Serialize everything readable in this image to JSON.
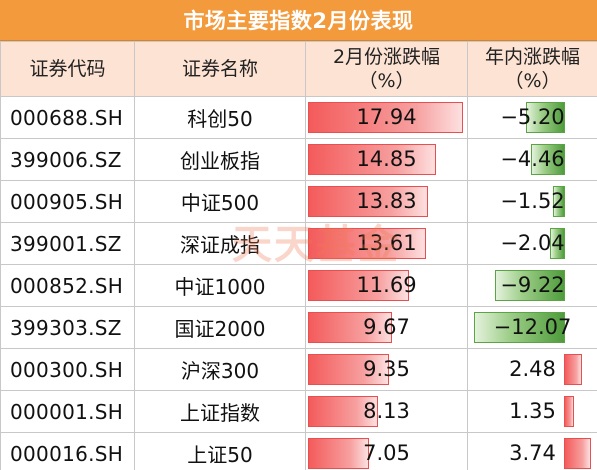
{
  "title": "市场主要指数2月份表现",
  "headers": {
    "code": "证券代码",
    "name": "证券名称",
    "feb_line1": "2月份涨跌幅",
    "feb_line2": "（%）",
    "ytd_line1": "年内涨跌幅",
    "ytd_line2": "（%）"
  },
  "rows": [
    {
      "code": "000688.SH",
      "name": "科创50",
      "feb": "17.94",
      "ytd": "−5.20",
      "feb_value": 17.94,
      "ytd_value": -5.2
    },
    {
      "code": "399006.SZ",
      "name": "创业板指",
      "feb": "14.85",
      "ytd": "−4.46",
      "feb_value": 14.85,
      "ytd_value": -4.46
    },
    {
      "code": "000905.SH",
      "name": "中证500",
      "feb": "13.83",
      "ytd": "−1.52",
      "feb_value": 13.83,
      "ytd_value": -1.52
    },
    {
      "code": "399001.SZ",
      "name": "深证成指",
      "feb": "13.61",
      "ytd": "−2.04",
      "feb_value": 13.61,
      "ytd_value": -2.04
    },
    {
      "code": "000852.SH",
      "name": "中证1000",
      "feb": "11.69",
      "ytd": "−9.22",
      "feb_value": 11.69,
      "ytd_value": -9.22
    },
    {
      "code": "399303.SZ",
      "name": "国证2000",
      "feb": "9.67",
      "ytd": "−12.07",
      "feb_value": 9.67,
      "ytd_value": -12.07
    },
    {
      "code": "000300.SH",
      "name": "沪深300",
      "feb": "9.35",
      "ytd": "2.48",
      "feb_value": 9.35,
      "ytd_value": 2.48
    },
    {
      "code": "000001.SH",
      "name": "上证指数",
      "feb": "8.13",
      "ytd": "1.35",
      "feb_value": 8.13,
      "ytd_value": 1.35
    },
    {
      "code": "000016.SH",
      "name": "上证50",
      "feb": "7.05",
      "ytd": "3.74",
      "feb_value": 7.05,
      "ytd_value": 3.74
    }
  ],
  "colors": {
    "title_bg": "#f39a3d",
    "header_bg": "#fde3d3",
    "positive_bar": "#f45b5b",
    "negative_bar": "#4f9c3c"
  },
  "watermark": "天天基金"
}
